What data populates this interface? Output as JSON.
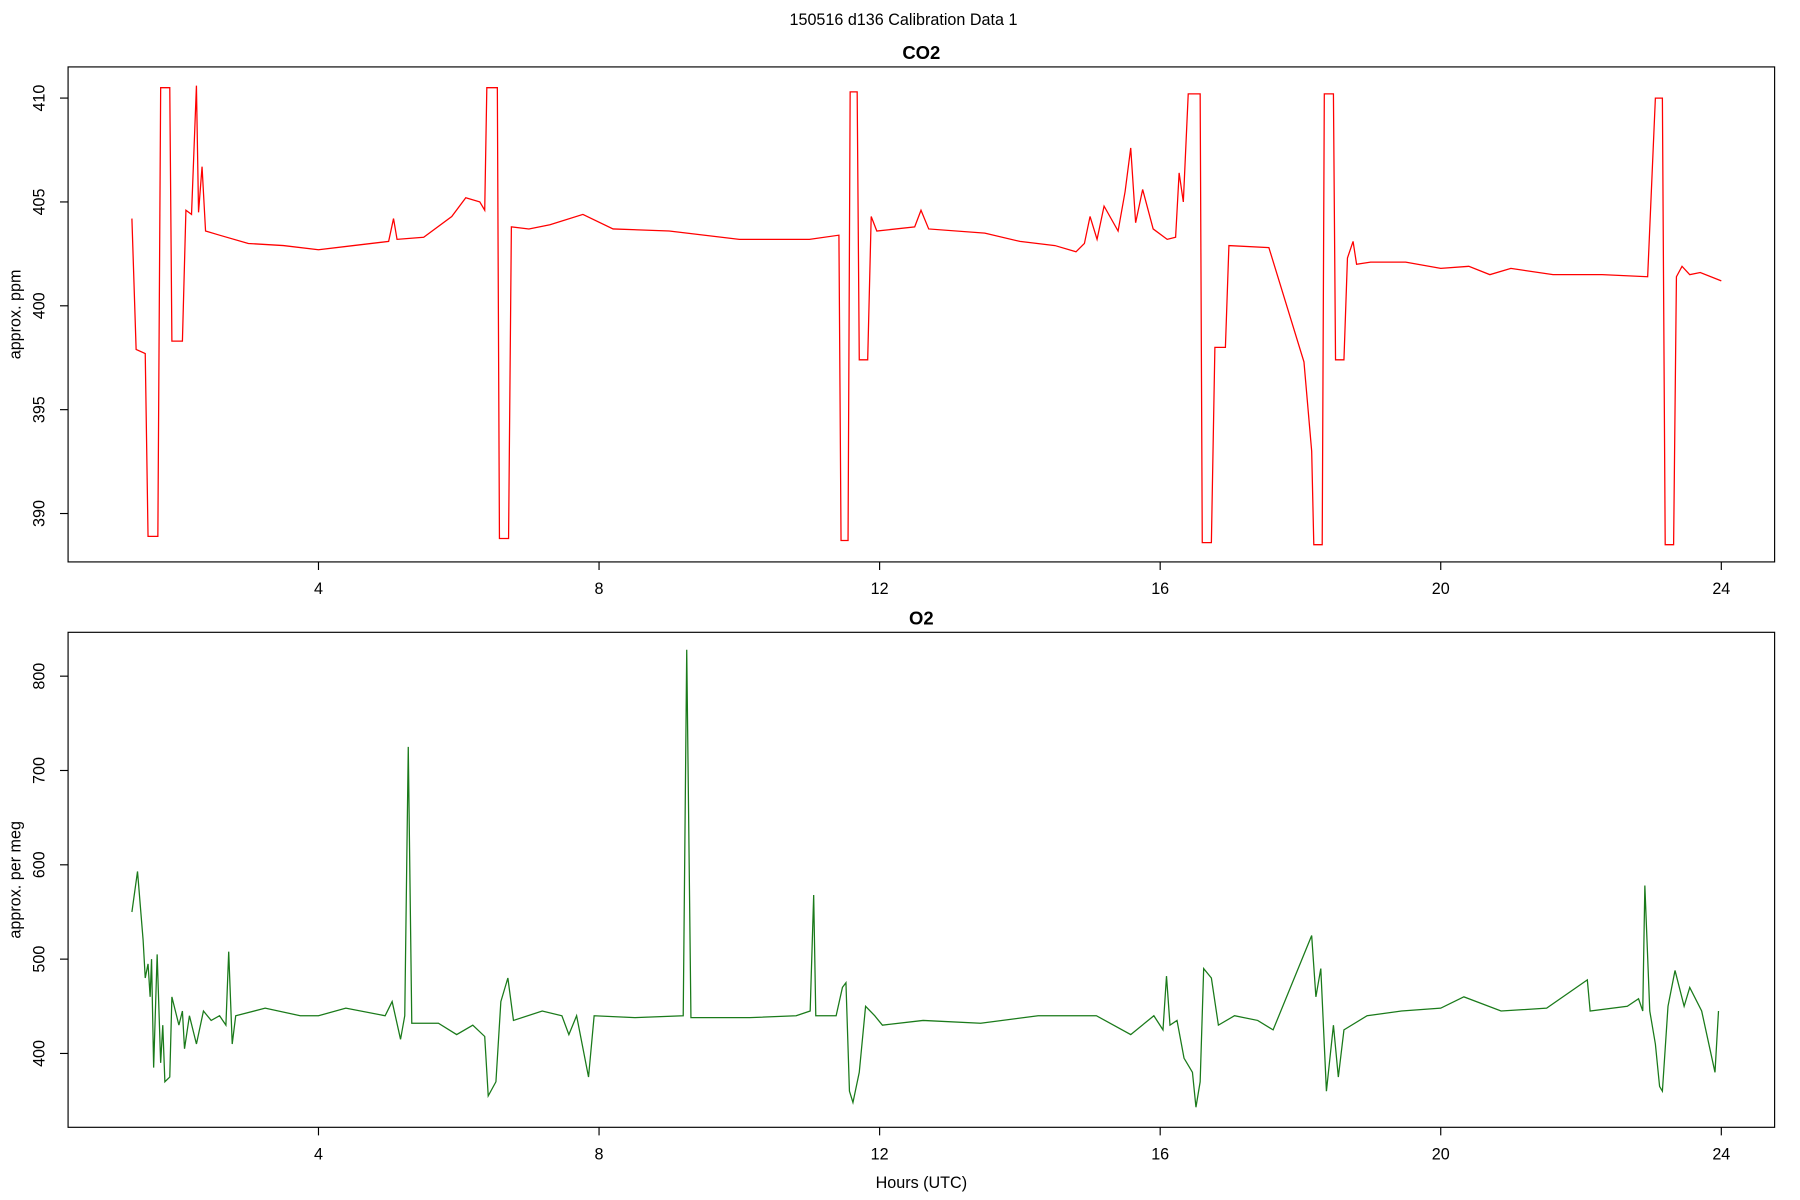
{
  "title": "150516   d136   Calibration Data 1",
  "chart_data": [
    {
      "type": "line",
      "title": "CO2",
      "y_label": "approx. ppm",
      "color": "#ff0000",
      "xlim": [
        0.43,
        24.76
      ],
      "ylim": [
        387.67,
        411.5
      ],
      "xticks": [
        4,
        8,
        12,
        16,
        20,
        24
      ],
      "yticks": [
        390,
        395,
        400,
        405,
        410
      ],
      "x": [
        1.34,
        1.4,
        1.53,
        1.57,
        1.71,
        1.75,
        1.88,
        1.91,
        2.06,
        2.11,
        2.19,
        2.26,
        2.29,
        2.34,
        2.39,
        2.59,
        3.0,
        3.5,
        4.0,
        4.5,
        5.0,
        5.07,
        5.12,
        5.5,
        5.9,
        6.1,
        6.3,
        6.37,
        6.4,
        6.55,
        6.58,
        6.71,
        6.75,
        7.0,
        7.3,
        7.77,
        8.2,
        9.0,
        10.0,
        11.0,
        11.42,
        11.45,
        11.55,
        11.58,
        11.68,
        11.71,
        11.83,
        11.88,
        11.96,
        12.5,
        12.59,
        12.7,
        13.5,
        14.0,
        14.5,
        14.8,
        14.92,
        15.0,
        15.1,
        15.2,
        15.4,
        15.5,
        15.58,
        15.65,
        15.75,
        15.9,
        16.1,
        16.22,
        16.27,
        16.33,
        16.4,
        16.57,
        16.6,
        16.73,
        16.78,
        16.93,
        16.98,
        17.55,
        18.05,
        18.16,
        18.19,
        18.31,
        18.34,
        18.47,
        18.5,
        18.62,
        18.67,
        18.75,
        18.8,
        19.0,
        19.5,
        20.0,
        20.4,
        20.7,
        21.0,
        21.6,
        22.3,
        22.95,
        23.06,
        23.16,
        23.2,
        23.32,
        23.36,
        23.44,
        23.55,
        23.7,
        24.0
      ],
      "values": [
        404.2,
        397.9,
        397.7,
        388.9,
        388.9,
        410.5,
        410.5,
        398.3,
        398.3,
        404.6,
        404.4,
        410.6,
        404.5,
        406.7,
        403.6,
        403.4,
        403.0,
        402.9,
        402.7,
        402.9,
        403.1,
        404.2,
        403.2,
        403.3,
        404.3,
        405.2,
        405.0,
        404.6,
        410.5,
        410.5,
        388.8,
        388.8,
        403.8,
        403.7,
        403.9,
        404.4,
        403.7,
        403.6,
        403.2,
        403.2,
        403.4,
        388.7,
        388.7,
        410.3,
        410.3,
        397.4,
        397.4,
        404.3,
        403.6,
        403.8,
        404.6,
        403.7,
        403.5,
        403.1,
        402.9,
        402.6,
        403.0,
        404.3,
        403.2,
        404.8,
        403.6,
        405.5,
        407.6,
        404.0,
        405.6,
        403.7,
        403.2,
        403.3,
        406.4,
        405.0,
        410.2,
        410.2,
        388.6,
        388.6,
        398.0,
        398.0,
        402.9,
        402.8,
        397.3,
        393.0,
        388.5,
        388.5,
        410.2,
        410.2,
        397.4,
        397.4,
        402.3,
        403.1,
        402.0,
        402.1,
        402.1,
        401.8,
        401.9,
        401.5,
        401.8,
        401.5,
        401.5,
        401.4,
        410.0,
        410.0,
        388.5,
        388.5,
        401.4,
        401.9,
        401.5,
        401.6,
        401.2
      ]
    },
    {
      "type": "line",
      "title": "O2",
      "y_label": "approx. per meg",
      "x_label": "Hours (UTC)",
      "color": "#1a7a1a",
      "xlim": [
        0.43,
        24.76
      ],
      "ylim": [
        321.7,
        846.5
      ],
      "xticks": [
        4,
        8,
        12,
        16,
        20,
        24
      ],
      "yticks": [
        400,
        500,
        600,
        700,
        800
      ],
      "x": [
        1.34,
        1.42,
        1.5,
        1.53,
        1.57,
        1.6,
        1.62,
        1.65,
        1.7,
        1.75,
        1.78,
        1.81,
        1.88,
        1.91,
        2.01,
        2.06,
        2.09,
        2.16,
        2.26,
        2.36,
        2.47,
        2.59,
        2.68,
        2.72,
        2.77,
        2.82,
        3.24,
        3.74,
        4.0,
        4.39,
        4.95,
        5.05,
        5.17,
        5.23,
        5.28,
        5.33,
        5.71,
        5.97,
        6.2,
        6.37,
        6.42,
        6.53,
        6.6,
        6.7,
        6.78,
        7.19,
        7.47,
        7.57,
        7.68,
        7.85,
        7.93,
        8.51,
        9.2,
        9.25,
        9.31,
        10.15,
        10.81,
        11.01,
        11.06,
        11.09,
        11.38,
        11.47,
        11.52,
        11.57,
        11.62,
        11.71,
        11.8,
        11.93,
        12.04,
        12.62,
        13.44,
        14.26,
        15.09,
        15.58,
        15.91,
        16.04,
        16.09,
        16.14,
        16.24,
        16.34,
        16.46,
        16.51,
        16.57,
        16.62,
        16.73,
        16.83,
        17.06,
        17.39,
        17.61,
        18.16,
        18.22,
        18.29,
        18.37,
        18.47,
        18.54,
        18.62,
        18.95,
        19.44,
        20.0,
        20.33,
        20.86,
        21.51,
        22.09,
        22.13,
        22.66,
        22.82,
        22.88,
        22.91,
        22.98,
        23.06,
        23.12,
        23.16,
        23.24,
        23.34,
        23.47,
        23.55,
        23.72,
        23.91,
        23.96
      ],
      "values": [
        550,
        593,
        520,
        480,
        495,
        460,
        500,
        385,
        505,
        390,
        430,
        370,
        375,
        460,
        430,
        445,
        405,
        440,
        410,
        445,
        435,
        440,
        430,
        508,
        410,
        440,
        448,
        440,
        440,
        448,
        440,
        455,
        415,
        440,
        725,
        432,
        432,
        420,
        430,
        418,
        355,
        370,
        455,
        480,
        435,
        445,
        440,
        420,
        440,
        375,
        440,
        438,
        440,
        828,
        438,
        438,
        440,
        445,
        568,
        440,
        440,
        470,
        475,
        360,
        348,
        380,
        450,
        440,
        430,
        435,
        432,
        440,
        440,
        420,
        440,
        425,
        482,
        430,
        435,
        395,
        380,
        343,
        370,
        490,
        480,
        430,
        440,
        435,
        425,
        525,
        460,
        490,
        360,
        430,
        375,
        425,
        440,
        445,
        448,
        460,
        445,
        448,
        478,
        445,
        450,
        458,
        445,
        578,
        445,
        410,
        365,
        360,
        450,
        488,
        450,
        470,
        445,
        380,
        445
      ]
    }
  ]
}
